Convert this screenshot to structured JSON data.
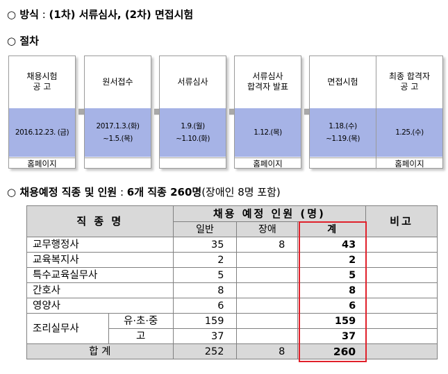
{
  "method": {
    "bullet": "○",
    "label": "방식",
    "colon": " : ",
    "text_a": "(1차)",
    "text_b": " 서류심사, ",
    "text_c": "(2차)",
    "text_d": " 면접시험"
  },
  "procedure": {
    "bullet": "○",
    "label": "절차"
  },
  "steps": [
    {
      "title": "채용시험\n공    고",
      "date": "2016.12.23. (금)",
      "note": "홈페이지"
    },
    {
      "title": "원서접수",
      "date": "2017.1.3.(화)\n~1.5.(목)",
      "note": ""
    },
    {
      "title": "서류심사",
      "date": "1.9.(월)\n~1.10.(화)",
      "note": ""
    },
    {
      "title": "서류심사\n합격자 발표",
      "date": "1.12.(목)",
      "note": "홈페이지"
    },
    {
      "title": "면접시험",
      "date": "1.18.(수)\n~1.19.(목)",
      "note": ""
    },
    {
      "title": "최종 합격자\n공    고",
      "date": "1.25.(수)",
      "note": "홈페이지"
    }
  ],
  "recruit": {
    "bullet": "○",
    "label": "채용예정 직종 및 인원",
    "colon": " : ",
    "summary": "6개 직종 260명",
    "paren": "(장애인 8명 포함)"
  },
  "table": {
    "h_job": "직 종 명",
    "h_plan": "채용 예정 인원 (명)",
    "h_note": "비고",
    "h_general": "일반",
    "h_disabled": "장애",
    "h_total": "계",
    "rows": [
      {
        "name": "교무행정사",
        "general": "35",
        "disabled": "8",
        "total": "43"
      },
      {
        "name": "교육복지사",
        "general": "2",
        "disabled": "",
        "total": "2"
      },
      {
        "name": "특수교육실무사",
        "general": "5",
        "disabled": "",
        "total": "5"
      },
      {
        "name": "간호사",
        "general": "8",
        "disabled": "",
        "total": "8"
      },
      {
        "name": "영양사",
        "general": "6",
        "disabled": "",
        "total": "6"
      }
    ],
    "cook": {
      "name": "조리실무사",
      "sub1": {
        "label": "유·초·중",
        "general": "159",
        "disabled": "",
        "total": "159"
      },
      "sub2": {
        "label": "고",
        "general": "37",
        "disabled": "",
        "total": "37"
      }
    },
    "sum": {
      "label": "합    계",
      "general": "252",
      "disabled": "8",
      "total": "260"
    }
  }
}
